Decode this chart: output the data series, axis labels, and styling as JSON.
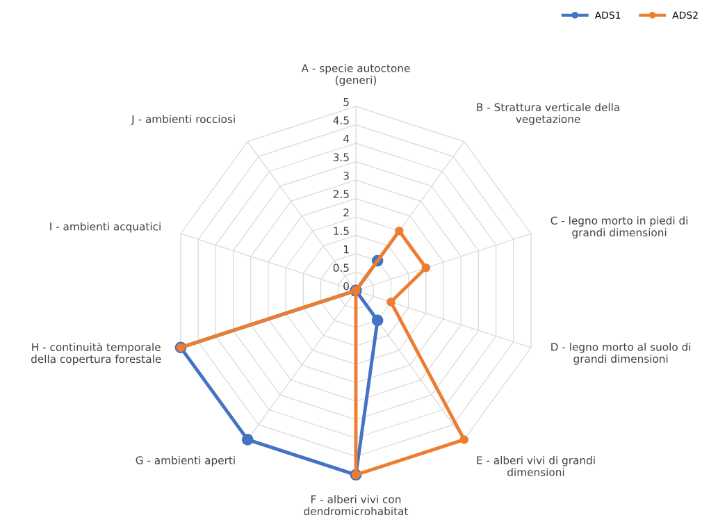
{
  "chart_data": {
    "type": "radar",
    "categories": [
      "A - specie autoctone\n(generi)",
      "B - Strattura verticale della\nvegetazione",
      "C - legno morto in piedi di\ngrandi dimensioni",
      "D - legno morto al suolo di\ngrandi dimensioni",
      "E - alberi vivi di grandi\ndimensioni",
      "F - alberi vivi con\ndendromicrohabitat",
      "G - ambienti aperti",
      "H - continuità temporale\ndella copertura forestale",
      "I - ambienti acquatici",
      "J - ambienti rocciosi"
    ],
    "series": [
      {
        "name": "ADS1",
        "color": "#4472c4",
        "values": [
          0,
          1,
          0,
          0,
          1,
          5,
          5,
          5,
          0,
          0
        ]
      },
      {
        "name": "ADS2",
        "color": "#ed7d31",
        "values": [
          0,
          2,
          2,
          1,
          5,
          5,
          0,
          5,
          0,
          0
        ]
      }
    ],
    "ylim": [
      0,
      5
    ],
    "yticks": [
      0,
      0.5,
      1,
      1.5,
      2,
      2.5,
      3,
      3.5,
      4,
      4.5,
      5
    ],
    "grid": true,
    "legend": "top right",
    "marker": "circle",
    "line_style": "solid"
  }
}
